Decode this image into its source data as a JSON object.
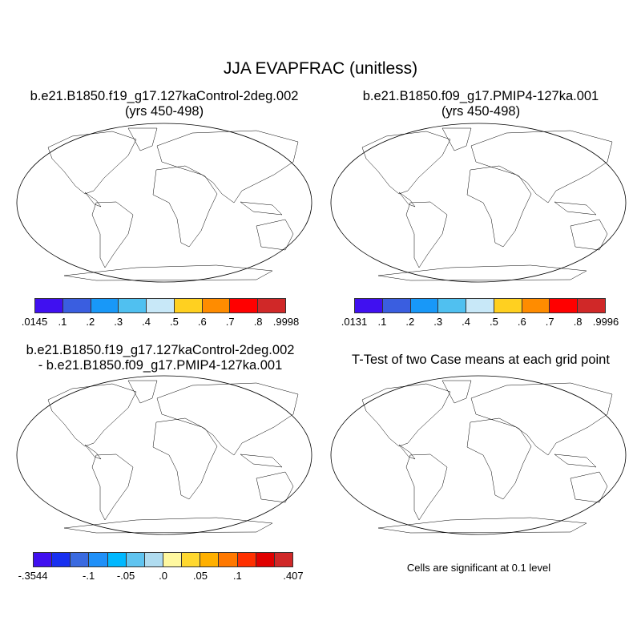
{
  "title": "JJA EVAPFRAC (unitless)",
  "panels": {
    "top_left": {
      "title_line1": "b.e21.B1850.f19_g17.127kaControl-2deg.002",
      "title_line2": "(yrs 450-498)"
    },
    "top_right": {
      "title_line1": "b.e21.B1850.f09_g17.PMIP4-127ka.001",
      "title_line2": "(yrs 450-498)"
    },
    "bottom_left": {
      "title_line1": "b.e21.B1850.f19_g17.127kaControl-2deg.002",
      "title_line2": "- b.e21.B1850.f09_g17.PMIP4-127ka.001"
    },
    "bottom_right": {
      "title_line1": "T-Test of two Case means at each grid point",
      "note": "Cells are significant at 0.1 level"
    }
  },
  "colorbars": {
    "top_left": {
      "colors": [
        "#4010f0",
        "#3a5ee0",
        "#1898f8",
        "#50c0f0",
        "#c8e8f8",
        "#ffd020",
        "#ff8c00",
        "#ff0000",
        "#d02828"
      ],
      "labels": [
        ".0145",
        ".1",
        ".2",
        ".3",
        ".4",
        ".5",
        ".6",
        ".7",
        ".8",
        ".9998"
      ]
    },
    "top_right": {
      "colors": [
        "#4010f0",
        "#3a5ee0",
        "#1898f8",
        "#50c0f0",
        "#c8e8f8",
        "#ffd020",
        "#ff8c00",
        "#ff0000",
        "#d02828"
      ],
      "labels": [
        ".0131",
        ".1",
        ".2",
        ".3",
        ".4",
        ".5",
        ".6",
        ".7",
        ".8",
        ".9996"
      ]
    },
    "bottom_left": {
      "colors": [
        "#4010f0",
        "#1830f0",
        "#3a6ae0",
        "#2090f8",
        "#00b8ff",
        "#60c4f0",
        "#b0dcf0",
        "#fff8a0",
        "#ffd830",
        "#ffb000",
        "#ff7800",
        "#ff3000",
        "#e00000",
        "#d02828"
      ],
      "labels": [
        {
          "text": "-.3544",
          "boundary": 0
        },
        {
          "text": "-.1",
          "boundary": 3
        },
        {
          "text": "-.05",
          "boundary": 5
        },
        {
          "text": ".0",
          "boundary": 7
        },
        {
          "text": ".05",
          "boundary": 9
        },
        {
          "text": ".1",
          "boundary": 11
        },
        {
          "text": ".407",
          "boundary": 14
        }
      ]
    }
  }
}
